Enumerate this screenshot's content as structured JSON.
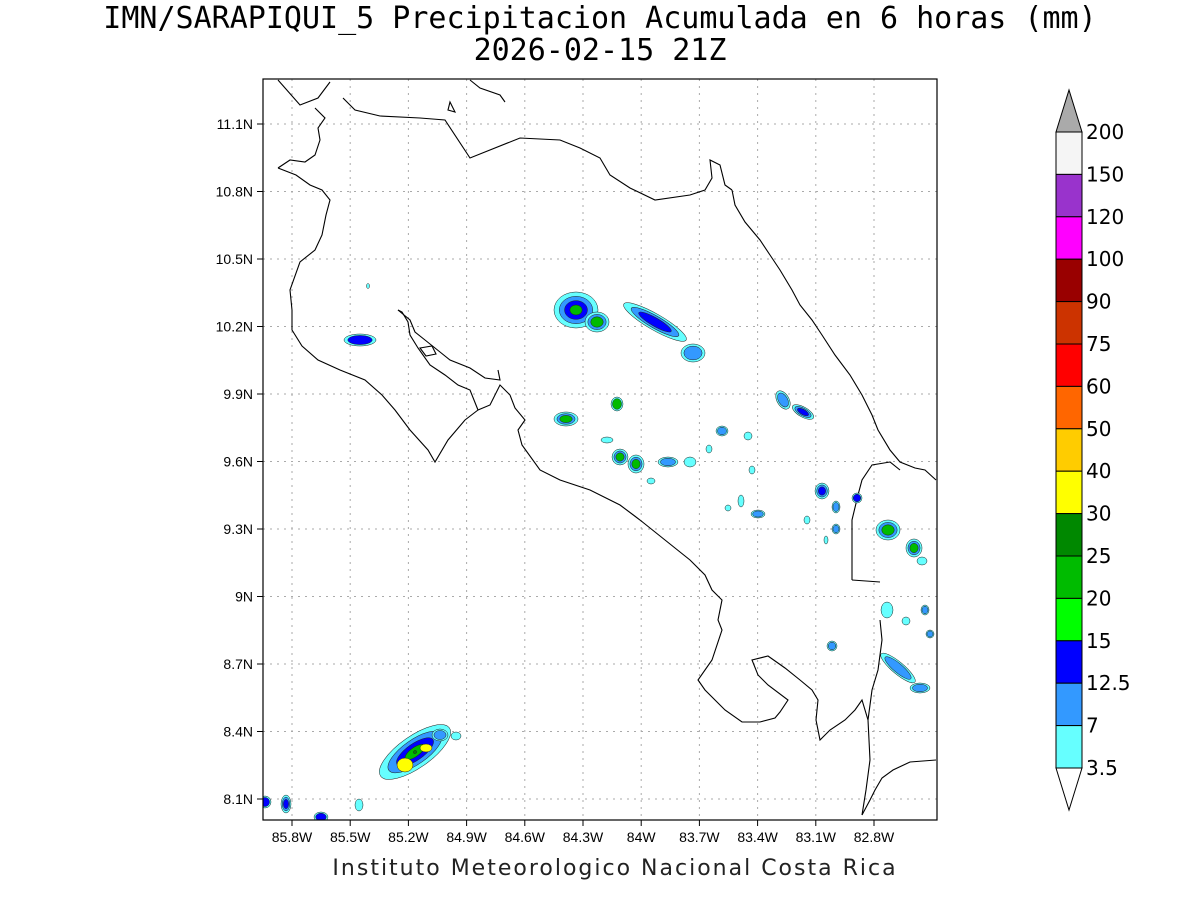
{
  "header": {
    "title": "IMN/SARAPIQUI_5 Precipitacion Acumulada en 6 horas (mm)",
    "subtitle": "2026-02-15 21Z"
  },
  "map": {
    "lon_ticks": [
      "85.8W",
      "85.5W",
      "85.2W",
      "84.9W",
      "84.6W",
      "84.3W",
      "84W",
      "83.7W",
      "83.4W",
      "83.1W",
      "82.8W"
    ],
    "lat_ticks": [
      "11.1N",
      "10.8N",
      "10.5N",
      "10.2N",
      "9.9N",
      "9.6N",
      "9.3N",
      "9N",
      "8.7N",
      "8.4N",
      "8.1N"
    ]
  },
  "legend": {
    "labels": [
      "200",
      "150",
      "120",
      "100",
      "90",
      "75",
      "60",
      "50",
      "40",
      "30",
      "25",
      "20",
      "15",
      "12.5",
      "7",
      "3.5"
    ],
    "colors": [
      "#f5f5f5",
      "#9933cc",
      "#ff00ff",
      "#990000",
      "#cc3300",
      "#ff0000",
      "#ff6600",
      "#ffcc00",
      "#ffff00",
      "#008800",
      "#00bb00",
      "#00ff00",
      "#0000ff",
      "#3399ff",
      "#66ffff"
    ],
    "top_arrow_color": "#aaaaaa"
  },
  "footer": {
    "credit": "Instituto Meteorologico Nacional Costa Rica"
  }
}
